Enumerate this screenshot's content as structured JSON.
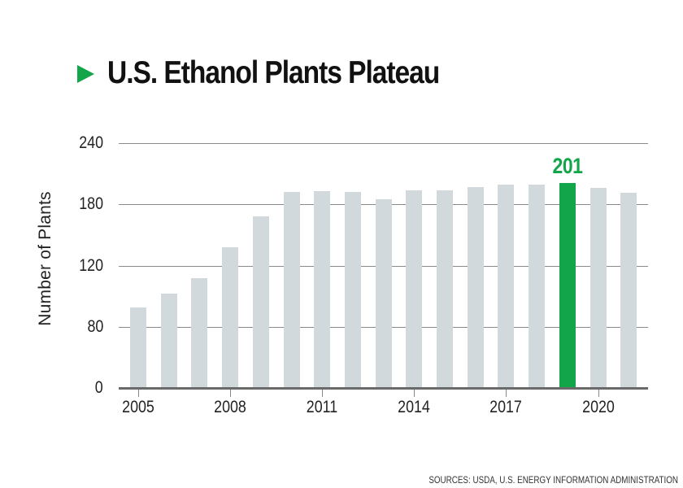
{
  "title": "U.S. Ethanol Plants Plateau",
  "source": "SOURCES: USDA, U.S. ENERGY INFORMATION ADMINISTRATION",
  "colors": {
    "accent": "#12a54a",
    "bar": "#d1d9dc",
    "grid": "#8a8a8a",
    "text": "#111111"
  },
  "chart_data": {
    "type": "bar",
    "title": "U.S. Ethanol Plants Plateau",
    "xlabel": "",
    "ylabel": "Number of Plants",
    "categories": [
      "2005",
      "2006",
      "2007",
      "2008",
      "2009",
      "2010",
      "2011",
      "2012",
      "2013",
      "2014",
      "2015",
      "2016",
      "2017",
      "2018",
      "2019",
      "2020",
      "2021"
    ],
    "values": [
      93,
      102,
      112,
      138,
      168,
      192,
      193,
      192,
      185,
      194,
      194,
      197,
      199,
      199,
      201,
      196,
      191
    ],
    "highlight": {
      "category": "2019",
      "value": 201,
      "label": "201"
    },
    "yticks": [
      "0",
      "80",
      "120",
      "180",
      "240"
    ],
    "xticks": [
      "2005",
      "2008",
      "2011",
      "2014",
      "2017",
      "2020"
    ],
    "ylim": [
      0,
      240
    ],
    "grid": true,
    "legend": null,
    "annotations": [
      "201"
    ],
    "source": "SOURCES: USDA, U.S. ENERGY INFORMATION ADMINISTRATION"
  }
}
